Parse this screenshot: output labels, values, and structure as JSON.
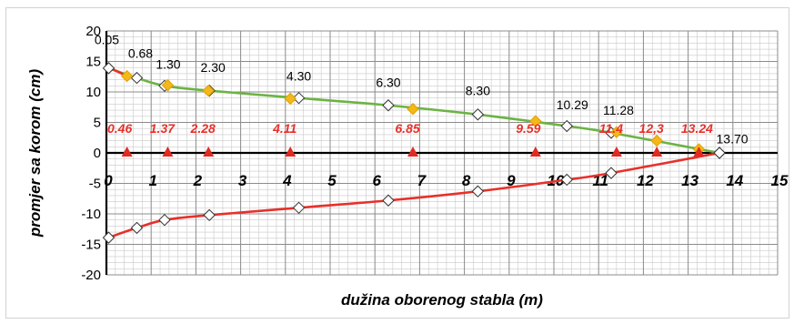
{
  "chart_data": {
    "type": "line",
    "title": "",
    "xlabel": "dužina oborenog stabla (m)",
    "ylabel": "promjer sa korom (cm)",
    "xlim": [
      0,
      15
    ],
    "ylim": [
      -20,
      20
    ],
    "x_ticks": [
      "0",
      "1",
      "2",
      "3",
      "4",
      "5",
      "6",
      "7",
      "8",
      "9",
      "10",
      "11",
      "12",
      "13",
      "14",
      "15"
    ],
    "y_ticks": [
      "-20",
      "-15",
      "-10",
      "-5",
      "0",
      "5",
      "10",
      "15",
      "20"
    ],
    "grid": true,
    "colors": {
      "top_curve": "#6cb344",
      "bottom_curve": "#e8302a",
      "segment_marker": "#f5b81a",
      "position_marker": "#e02b22",
      "measure_marker": "#ffffff"
    },
    "measure_points": {
      "x": [
        0.05,
        0.68,
        1.3,
        2.3,
        4.3,
        6.3,
        8.3,
        10.29,
        11.28,
        13.7
      ],
      "top_y": [
        13.9,
        12.3,
        11.0,
        10.2,
        9.0,
        7.8,
        6.3,
        4.4,
        3.3,
        0
      ],
      "bottom_y": [
        -13.9,
        -12.3,
        -11.0,
        -10.2,
        -9.0,
        -7.8,
        -6.3,
        -4.4,
        -3.3,
        0
      ]
    },
    "measure_labels": [
      "0.05",
      "0.68",
      "1.30",
      "2.30",
      "4.30",
      "6.30",
      "8.30",
      "10.29",
      "11.28",
      "13.70"
    ],
    "segment_points": {
      "x": [
        0.46,
        1.37,
        2.28,
        4.11,
        6.85,
        9.59,
        11.4,
        12.3,
        13.24
      ],
      "y": [
        12.6,
        11.1,
        10.2,
        8.9,
        7.2,
        5.2,
        3.4,
        2.0,
        0.6
      ]
    },
    "position_labels": [
      "0.46",
      "1.37",
      "2.28",
      "4.11",
      "6.85",
      "9.59",
      "11.4",
      "12,3",
      "13.24"
    ]
  }
}
